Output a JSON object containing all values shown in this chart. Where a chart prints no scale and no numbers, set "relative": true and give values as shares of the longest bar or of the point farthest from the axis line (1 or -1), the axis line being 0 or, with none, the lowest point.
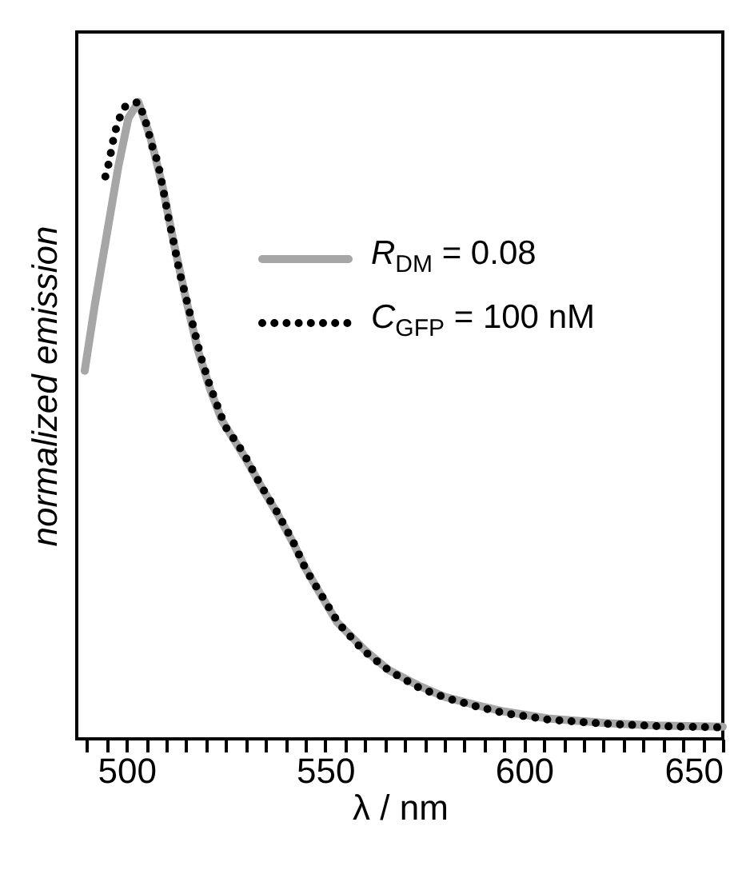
{
  "chart_data": {
    "type": "line",
    "xlabel": "λ / nm",
    "ylabel": "normalized emission",
    "relative": true,
    "xlim": [
      487.5,
      650
    ],
    "xticks": [
      {
        "value": 490,
        "label": null
      },
      {
        "value": 495,
        "label": null
      },
      500,
      {
        "value": 505,
        "label": null
      },
      {
        "value": 510,
        "label": null
      },
      {
        "value": 515,
        "label": null
      },
      {
        "value": 520,
        "label": null
      },
      {
        "value": 525,
        "label": null
      },
      {
        "value": 530,
        "label": null
      },
      {
        "value": 535,
        "label": null
      },
      {
        "value": 540,
        "label": null
      },
      {
        "value": 545,
        "label": null
      },
      550,
      {
        "value": 555,
        "label": null
      },
      {
        "value": 560,
        "label": null
      },
      {
        "value": 565,
        "label": null
      },
      {
        "value": 570,
        "label": null
      },
      {
        "value": 575,
        "label": null
      },
      {
        "value": 580,
        "label": null
      },
      {
        "value": 585,
        "label": null
      },
      {
        "value": 590,
        "label": null
      },
      {
        "value": 595,
        "label": null
      },
      600,
      {
        "value": 605,
        "label": null
      },
      {
        "value": 610,
        "label": null
      },
      {
        "value": 615,
        "label": null
      },
      {
        "value": 620,
        "label": null
      },
      {
        "value": 625,
        "label": null
      },
      {
        "value": 630,
        "label": null
      },
      {
        "value": 635,
        "label": null
      },
      {
        "value": 640,
        "label": null
      },
      {
        "value": 645,
        "label": null
      },
      650
    ],
    "legend": "right",
    "grid": false,
    "series": [
      {
        "name": "R$_{DM}$ = 0.08",
        "color": "#a6a6a6",
        "line_style": "solid",
        "x": [
          489.5,
          492,
          495,
          498,
          500.5,
          503,
          506,
          509,
          512,
          515,
          518,
          521,
          524,
          527,
          530,
          534,
          538,
          542,
          545,
          549,
          553,
          560,
          566,
          574,
          580,
          588,
          595,
          606,
          620,
          633,
          650
        ],
        "values": [
          0.578,
          0.68,
          0.79,
          0.9,
          0.975,
          1.0,
          0.945,
          0.87,
          0.776,
          0.69,
          0.61,
          0.55,
          0.5,
          0.47,
          0.44,
          0.395,
          0.353,
          0.307,
          0.268,
          0.225,
          0.183,
          0.139,
          0.108,
          0.082,
          0.066,
          0.053,
          0.043,
          0.032,
          0.025,
          0.021,
          0.019
        ]
      },
      {
        "name": "C$_{GFP}$ = 100 nM",
        "color": "#000000",
        "line_style": "dotted",
        "x": [
          494.7,
          495.6,
          497.0,
          498.4,
          499.7,
          502.9,
          504.5,
          506.5,
          507.9,
          509.2,
          510.6,
          512.0,
          513.3,
          514.7,
          516.0,
          517.4,
          518.7,
          520.8,
          522.8,
          524.8,
          527.6,
          529.6,
          533.7,
          537.8,
          541.8,
          545.2,
          549.3,
          553.4,
          559.5,
          566.3,
          573.7,
          580.5,
          588.0,
          595.4,
          606.3,
          619.9,
          633.5,
          649.1
        ],
        "values": [
          0.883,
          0.905,
          0.951,
          0.977,
          0.993,
          1.0,
          0.977,
          0.93,
          0.905,
          0.864,
          0.817,
          0.776,
          0.734,
          0.7,
          0.667,
          0.633,
          0.6,
          0.558,
          0.524,
          0.491,
          0.466,
          0.447,
          0.399,
          0.357,
          0.311,
          0.265,
          0.223,
          0.181,
          0.139,
          0.106,
          0.08,
          0.064,
          0.051,
          0.04,
          0.03,
          0.024,
          0.02,
          0.018
        ]
      }
    ]
  }
}
